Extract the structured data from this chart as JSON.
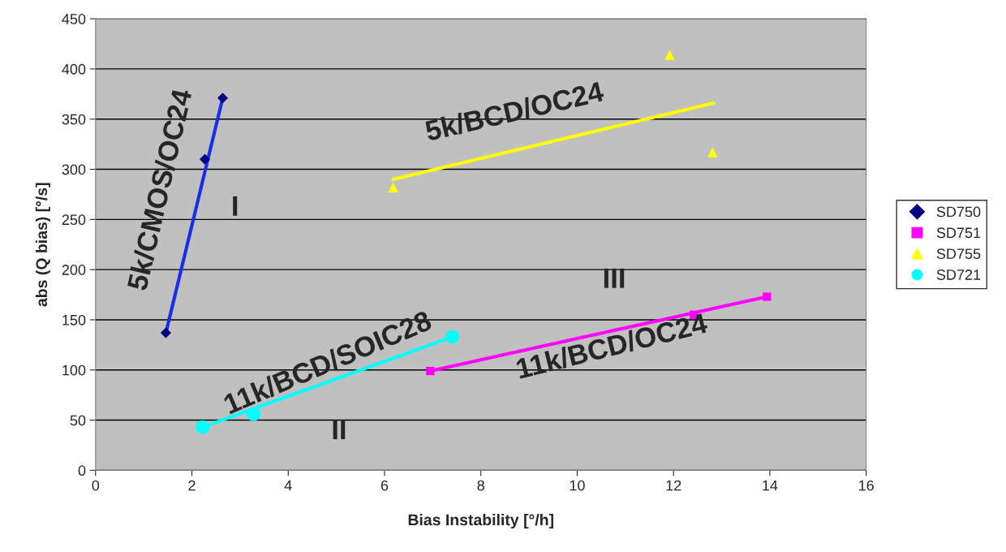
{
  "chart_data": {
    "type": "scatter",
    "xlabel": "Bias Instability [°/h]",
    "ylabel": "abs (Q bias) [°/s]",
    "xlim": [
      0,
      16
    ],
    "ylim": [
      0,
      450
    ],
    "xticks": [
      0,
      2,
      4,
      6,
      8,
      10,
      12,
      14,
      16
    ],
    "yticks": [
      0,
      50,
      100,
      150,
      200,
      250,
      300,
      350,
      400,
      450
    ],
    "grid": "y",
    "legend": "right",
    "series": [
      {
        "name": "SD750",
        "marker": "diamond",
        "color": "#000080",
        "x": [
          1.46,
          2.27,
          2.64
        ],
        "values": [
          137,
          310,
          371
        ]
      },
      {
        "name": "SD751",
        "marker": "square",
        "color": "#ff00ff",
        "x": [
          6.95,
          12.42,
          13.94
        ],
        "values": [
          99,
          155,
          173
        ]
      },
      {
        "name": "SD755",
        "marker": "triangle",
        "color": "#ffff00",
        "x": [
          6.18,
          11.92,
          12.81
        ],
        "values": [
          282,
          414,
          317
        ]
      },
      {
        "name": "SD721",
        "marker": "circle",
        "color": "#00ffff",
        "x": [
          2.22,
          3.28,
          7.41
        ],
        "values": [
          43,
          56,
          133
        ]
      },
      {
        "type": "line",
        "color": "#1a2ee8",
        "x": [
          1.46,
          2.64
        ],
        "values": [
          137,
          371
        ]
      },
      {
        "type": "line",
        "color": "#ff00ff",
        "x": [
          6.95,
          13.94
        ],
        "values": [
          99,
          173
        ]
      },
      {
        "type": "line",
        "color": "#ffff00",
        "x": [
          6.18,
          12.83
        ],
        "values": [
          290,
          366
        ]
      },
      {
        "type": "line",
        "color": "#00ffff",
        "x": [
          2.22,
          7.41
        ],
        "values": [
          43,
          133
        ]
      }
    ],
    "annotations": [
      "5k/CMOS/OC24",
      "5k/BCD/OC24",
      "11k/BCD/SOIC28",
      "11k/BCD/OC24",
      "I",
      "II",
      "III"
    ]
  }
}
